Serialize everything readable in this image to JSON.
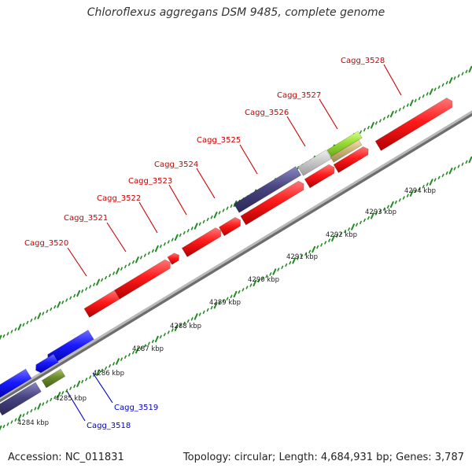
{
  "title": "Chloroflexus aggregans DSM 9485, complete genome",
  "footer": {
    "accession": "Accession: NC_011831",
    "summary": "Topology: circular; Length: 4,684,931 bp; Genes: 3,787"
  },
  "colors": {
    "forward_gene": "#ff0000",
    "reverse_gene": "#0000ff",
    "forward_label": "#cc0000",
    "reverse_label": "#0000cc",
    "backbone": "#999999",
    "tick": "#228B22"
  },
  "ruler_ticks": [
    {
      "label": "4284 kbp"
    },
    {
      "label": "4285 kbp"
    },
    {
      "label": "4286 kbp"
    },
    {
      "label": "4287 kbp"
    },
    {
      "label": "4288 kbp"
    },
    {
      "label": "4289 kbp"
    },
    {
      "label": "4290 kbp"
    },
    {
      "label": "4291 kbp"
    },
    {
      "label": "4292 kbp"
    },
    {
      "label": "4293 kbp"
    },
    {
      "label": "4294 kbp"
    }
  ],
  "gene_labels": [
    {
      "text": "Cagg_3520",
      "strand": "forward"
    },
    {
      "text": "Cagg_3521",
      "strand": "forward"
    },
    {
      "text": "Cagg_3522",
      "strand": "forward"
    },
    {
      "text": "Cagg_3523",
      "strand": "forward"
    },
    {
      "text": "Cagg_3524",
      "strand": "forward"
    },
    {
      "text": "Cagg_3525",
      "strand": "forward"
    },
    {
      "text": "Cagg_3526",
      "strand": "forward"
    },
    {
      "text": "Cagg_3527",
      "strand": "forward"
    },
    {
      "text": "Cagg_3528",
      "strand": "forward"
    },
    {
      "text": "Cagg_3519",
      "strand": "reverse"
    },
    {
      "text": "Cagg_3518",
      "strand": "reverse"
    }
  ]
}
